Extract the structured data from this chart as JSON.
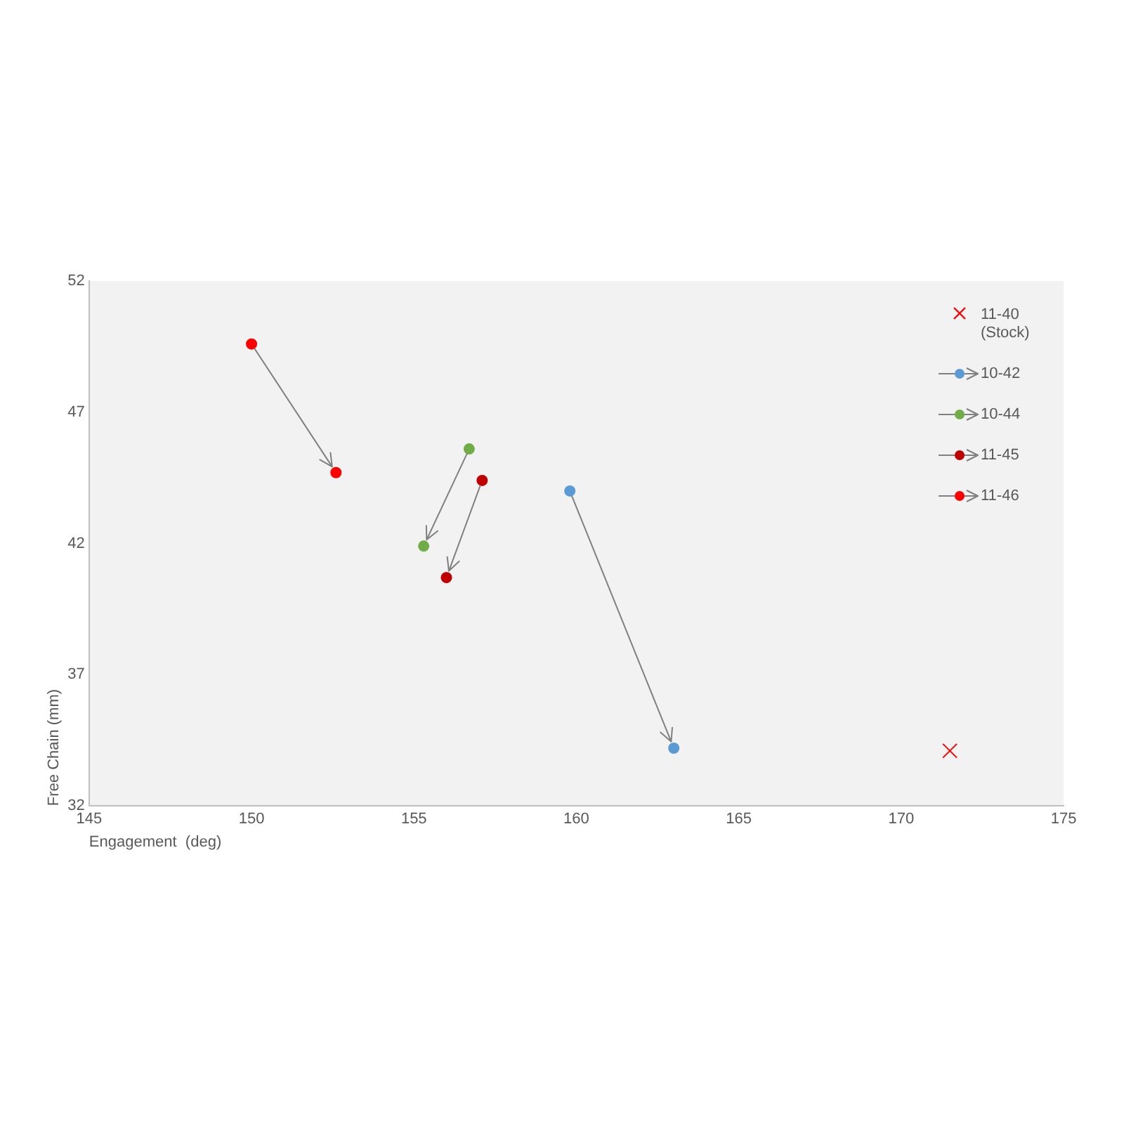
{
  "chart_data": {
    "type": "scatter",
    "xlabel": "Engagement  (deg)",
    "ylabel": "Free Chain (mm)",
    "xlim": [
      145,
      175
    ],
    "xticks": [
      145,
      150,
      155,
      160,
      165,
      170,
      175
    ],
    "ylim": [
      32,
      52
    ],
    "yticks": [
      32,
      37,
      42,
      47,
      52
    ],
    "grid": false,
    "legend": "top right",
    "series": [
      {
        "name": "11-40 (Stock)",
        "color": "#ff0000",
        "marker": "cross",
        "x": [
          171.5
        ],
        "values": [
          34.1
        ]
      },
      {
        "name": "10-42",
        "color": "#5b9bd5",
        "marker": "circle",
        "x": [
          159.8,
          163.0
        ],
        "values": [
          44.0,
          34.2
        ]
      },
      {
        "name": "10-44",
        "color": "#70ad47",
        "marker": "circle",
        "x": [
          156.7,
          155.3
        ],
        "values": [
          45.6,
          41.9
        ]
      },
      {
        "name": "11-45",
        "color": "#c00000",
        "marker": "circle",
        "x": [
          157.1,
          156.0
        ],
        "values": [
          44.4,
          40.7
        ]
      },
      {
        "name": "11-46",
        "color": "#ff0000",
        "marker": "circle",
        "x": [
          150.0,
          152.6
        ],
        "values": [
          49.6,
          44.7
        ]
      }
    ]
  }
}
